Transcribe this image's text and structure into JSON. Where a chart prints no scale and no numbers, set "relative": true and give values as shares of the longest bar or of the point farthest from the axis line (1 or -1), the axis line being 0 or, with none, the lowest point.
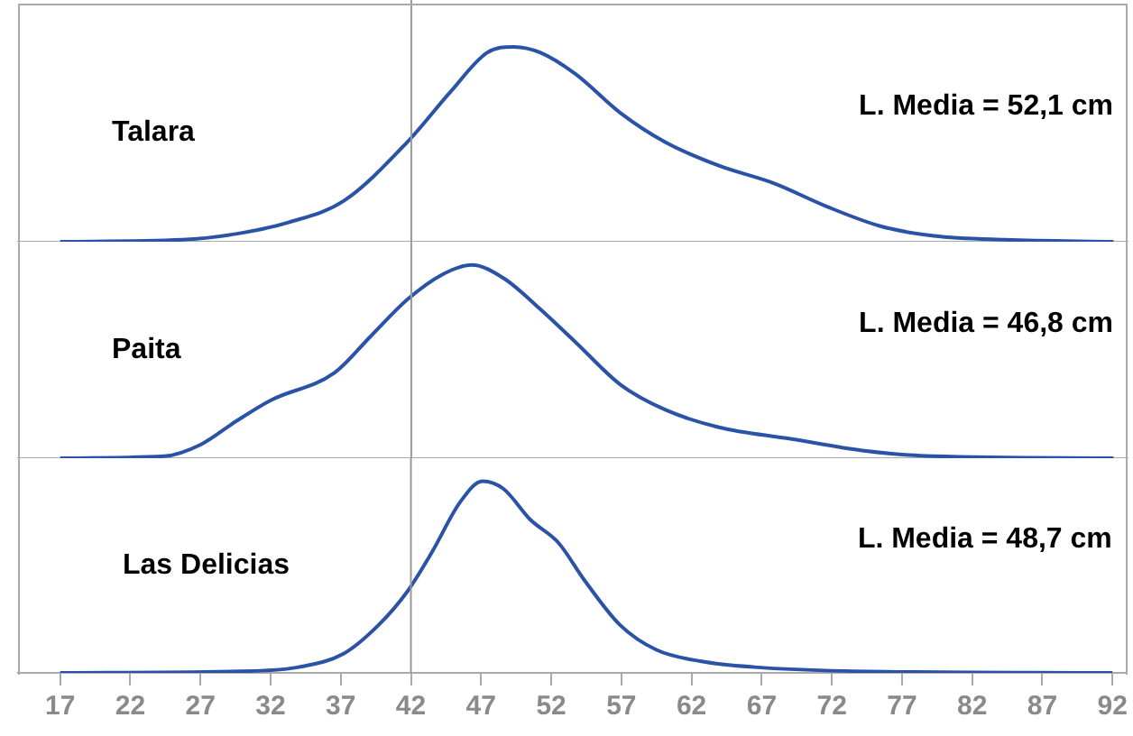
{
  "chart_data": [
    {
      "type": "line",
      "relative": true,
      "x": [
        17,
        25.7,
        29.5,
        33.3,
        37.2,
        41.7,
        44.8,
        47.4,
        49.3,
        51.2,
        53.7,
        56.9,
        60.1,
        63.9,
        67.8,
        71.6,
        75.4,
        79.2,
        84.3,
        92
      ],
      "series": [
        {
          "name": "Talara",
          "color": "#2a52a6",
          "values": [
            0,
            0.01,
            0.04,
            0.1,
            0.21,
            0.51,
            0.77,
            0.97,
            1,
            0.97,
            0.86,
            0.66,
            0.51,
            0.39,
            0.3,
            0.18,
            0.08,
            0.03,
            0.01,
            0
          ]
        }
      ],
      "xlim": [
        14,
        93
      ],
      "tick_labels": false,
      "marker": "none",
      "ref_lines": [
        {
          "axis": "x",
          "value": 42,
          "color": "#999999"
        }
      ],
      "annotations": [
        "L. Media = 52,1 cm"
      ]
    },
    {
      "type": "line",
      "relative": true,
      "x": [
        17,
        24.4,
        27,
        29.5,
        32,
        36.5,
        39.1,
        41.7,
        44.2,
        46.3,
        48.6,
        51.2,
        53.7,
        56.9,
        60.1,
        63.9,
        69,
        74.1,
        79.2,
        92
      ],
      "series": [
        {
          "name": "Paita",
          "color": "#2a52a6",
          "values": [
            0,
            0.01,
            0.07,
            0.19,
            0.3,
            0.44,
            0.63,
            0.82,
            0.95,
            1,
            0.93,
            0.77,
            0.6,
            0.38,
            0.25,
            0.16,
            0.1,
            0.04,
            0.01,
            0
          ]
        }
      ],
      "xlim": [
        14,
        93
      ],
      "tick_labels": false,
      "marker": "none",
      "ref_lines": [
        {
          "axis": "x",
          "value": 42,
          "color": "#999999"
        }
      ],
      "annotations": [
        "L. Media = 46,8 cm"
      ]
    },
    {
      "type": "line",
      "relative": true,
      "x": [
        17,
        30.8,
        34,
        37.2,
        39.7,
        41.7,
        43.5,
        45.5,
        47.1,
        48.6,
        50.5,
        52.5,
        54.4,
        56.9,
        59.5,
        62.7,
        66.5,
        72.9,
        92
      ],
      "series": [
        {
          "name": "Las Delicias",
          "color": "#2a52a6",
          "values": [
            0,
            0.01,
            0.03,
            0.1,
            0.25,
            0.42,
            0.63,
            0.89,
            1,
            0.96,
            0.8,
            0.68,
            0.48,
            0.25,
            0.12,
            0.06,
            0.03,
            0.01,
            0
          ]
        }
      ],
      "xlim": [
        14,
        93
      ],
      "xticks": [
        17,
        22,
        27,
        32,
        37,
        42,
        47,
        52,
        57,
        62,
        67,
        72,
        77,
        82,
        87,
        92
      ],
      "marker": "none",
      "ref_lines": [
        {
          "axis": "x",
          "value": 42,
          "color": "#999999"
        }
      ],
      "annotations": [
        "L. Media = 48,7 cm"
      ]
    }
  ]
}
